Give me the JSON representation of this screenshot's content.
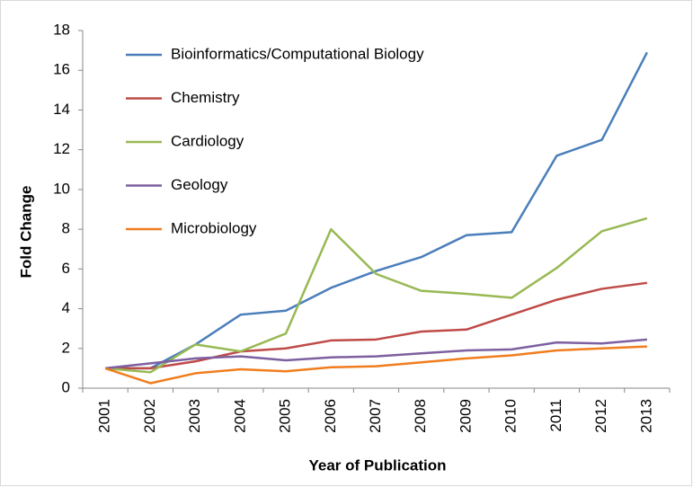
{
  "chart_data": {
    "type": "line",
    "x_label": "Year of Publication",
    "y_label": "Fold Change",
    "categories": [
      "2001",
      "2002",
      "2003",
      "2004",
      "2005",
      "2006",
      "2007",
      "2008",
      "2009",
      "2010",
      "2011",
      "2012",
      "2013"
    ],
    "series": [
      {
        "name": "Bioinformatics/Computational Biology",
        "color": "#4a7ebb",
        "values": [
          1,
          1.0,
          2.2,
          3.7,
          3.9,
          5.05,
          5.9,
          6.6,
          7.7,
          7.85,
          11.7,
          12.5,
          16.9
        ]
      },
      {
        "name": "Chemistry",
        "color": "#be4b48",
        "values": [
          1,
          1.0,
          1.35,
          1.85,
          2.0,
          2.4,
          2.45,
          2.85,
          2.95,
          3.7,
          4.45,
          5.0,
          5.3
        ]
      },
      {
        "name": "Cardiology",
        "color": "#98b954",
        "values": [
          1,
          0.8,
          2.2,
          1.85,
          2.75,
          8.0,
          5.75,
          4.9,
          4.75,
          4.55,
          6.05,
          7.9,
          8.55
        ]
      },
      {
        "name": "Geology",
        "color": "#7d60a0",
        "values": [
          1,
          1.25,
          1.5,
          1.6,
          1.4,
          1.55,
          1.6,
          1.75,
          1.9,
          1.95,
          2.3,
          2.25,
          2.45
        ]
      },
      {
        "name": "Microbiology",
        "color": "#f07d1e",
        "values": [
          1,
          0.25,
          0.75,
          0.95,
          0.85,
          1.05,
          1.1,
          1.3,
          1.5,
          1.65,
          1.9,
          2.0,
          2.1
        ]
      }
    ],
    "ylim": [
      0,
      18
    ],
    "yticks": [
      0,
      2,
      4,
      6,
      8,
      10,
      12,
      14,
      16,
      18
    ],
    "legend": "upper-left",
    "grid": false
  }
}
